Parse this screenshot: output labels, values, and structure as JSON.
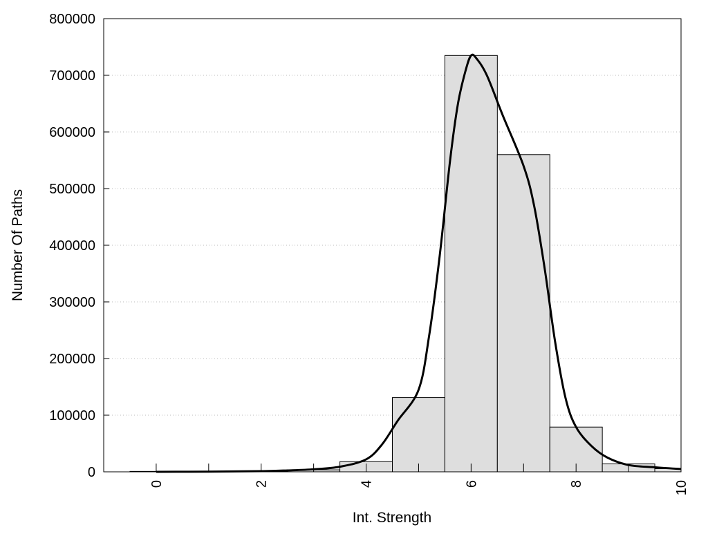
{
  "chart_data": {
    "type": "bar",
    "title": "",
    "xlabel": "Int. Strength",
    "ylabel": "Number Of Paths",
    "xlim": [
      -1,
      10
    ],
    "ylim": [
      0,
      800000
    ],
    "xticks": [
      "0",
      "2",
      "4",
      "6",
      "8",
      "10"
    ],
    "yticks": [
      "0",
      "100000",
      "200000",
      "300000",
      "400000",
      "500000",
      "600000",
      "700000",
      "800000"
    ],
    "grid": "horizontal-dotted",
    "bars": {
      "bin_width": 1,
      "centers": [
        0,
        1,
        2,
        3,
        4,
        5,
        6,
        7,
        8,
        9,
        10
      ],
      "values": [
        800,
        1000,
        1500,
        3500,
        18000,
        131000,
        735000,
        560000,
        79000,
        14000,
        5500
      ],
      "fill": "#dedede"
    },
    "fit_curve": {
      "x": [
        0,
        1,
        2,
        2.5,
        3,
        3.5,
        4,
        4.3,
        4.6,
        5,
        5.2,
        5.4,
        5.6,
        5.75,
        5.9,
        6,
        6.1,
        6.3,
        6.6,
        7,
        7.2,
        7.4,
        7.6,
        7.8,
        8,
        8.3,
        8.6,
        9,
        9.5,
        10
      ],
      "y": [
        0,
        300,
        1200,
        2500,
        4500,
        9000,
        22000,
        48000,
        90000,
        145000,
        240000,
        380000,
        550000,
        650000,
        710000,
        735000,
        730000,
        700000,
        630000,
        540000,
        470000,
        360000,
        230000,
        130000,
        79000,
        45000,
        25000,
        12000,
        8000,
        5000
      ],
      "color": "#000000"
    }
  }
}
